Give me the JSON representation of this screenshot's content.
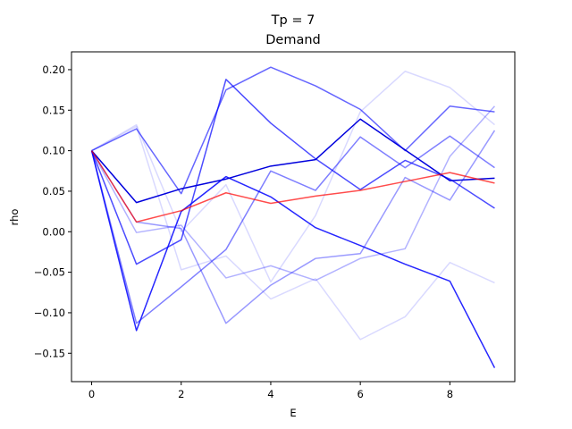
{
  "chart_data": {
    "type": "line",
    "title": "Tp = 7",
    "subtitle": "Demand",
    "xlabel": "E",
    "ylabel": "rho",
    "xlim": [
      -0.45,
      9.45
    ],
    "ylim": [
      -0.185,
      0.222
    ],
    "xticks": [
      0,
      2,
      4,
      6,
      8
    ],
    "yticks": [
      -0.15,
      -0.1,
      -0.05,
      0.0,
      0.05,
      0.1,
      0.15,
      0.2
    ],
    "ytick_labels": [
      "−0.15",
      "−0.10",
      "−0.05",
      "0.00",
      "0.05",
      "0.10",
      "0.15",
      "0.20"
    ],
    "grid": false,
    "x": [
      0,
      1,
      2,
      3,
      4,
      5,
      6,
      7,
      8,
      9
    ],
    "series": [
      {
        "color": "#0000ff",
        "opacity": 0.15,
        "values": [
          0.1,
          0.13,
          -0.047,
          -0.03,
          -0.083,
          -0.058,
          -0.133,
          -0.105,
          -0.038,
          -0.063
        ]
      },
      {
        "color": "#0000ff",
        "opacity": 0.15,
        "values": [
          0.1,
          0.132,
          0.0,
          0.058,
          -0.062,
          0.02,
          0.148,
          0.198,
          0.178,
          0.132
        ]
      },
      {
        "color": "#0000ff",
        "opacity": 0.3,
        "values": [
          0.1,
          -0.001,
          0.008,
          -0.057,
          -0.042,
          -0.06,
          -0.033,
          -0.021,
          0.093,
          0.155
        ]
      },
      {
        "color": "#0000ff",
        "opacity": 0.4,
        "values": [
          0.1,
          0.012,
          0.004,
          -0.113,
          -0.066,
          -0.033,
          -0.027,
          0.067,
          0.039,
          0.125
        ]
      },
      {
        "color": "#0000ff",
        "opacity": 0.5,
        "values": [
          0.1,
          -0.113,
          -0.068,
          -0.022,
          0.075,
          0.051,
          0.117,
          0.079,
          0.118,
          0.079
        ]
      },
      {
        "color": "#0000ff",
        "opacity": 0.6,
        "values": [
          0.1,
          0.127,
          0.047,
          0.175,
          0.203,
          0.18,
          0.151,
          0.1,
          0.155,
          0.148
        ]
      },
      {
        "color": "#0000ff",
        "opacity": 0.7,
        "values": [
          0.1,
          -0.04,
          -0.01,
          0.188,
          0.134,
          0.09,
          0.052,
          0.088,
          0.065,
          0.029
        ]
      },
      {
        "color": "#0000ff",
        "opacity": 0.85,
        "values": [
          0.1,
          -0.122,
          0.025,
          0.068,
          0.043,
          0.005,
          -0.017,
          -0.04,
          -0.061,
          -0.168
        ]
      },
      {
        "color": "#0000dd",
        "opacity": 1.0,
        "values": [
          0.1,
          0.036,
          0.053,
          0.065,
          0.081,
          0.089,
          0.139,
          0.101,
          0.063,
          0.066
        ]
      },
      {
        "color": "#ff0000",
        "opacity": 0.7,
        "values": [
          0.1,
          0.012,
          0.026,
          0.048,
          0.035,
          0.044,
          0.051,
          0.062,
          0.073,
          0.06
        ]
      }
    ]
  }
}
